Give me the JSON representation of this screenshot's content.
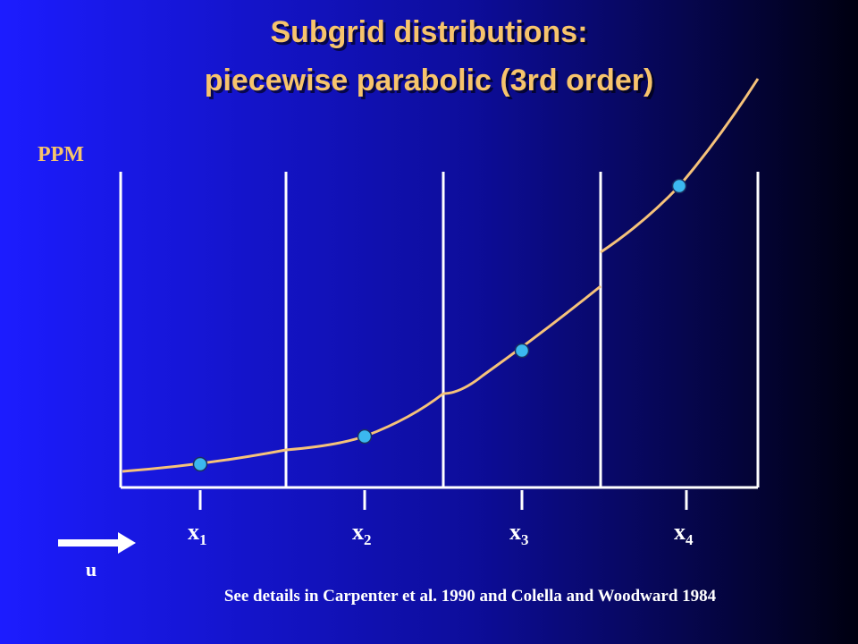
{
  "title": [
    "Subgrid distributions:",
    "piecewise parabolic (3rd order)"
  ],
  "label": "PPM",
  "points": [
    {
      "base": "x",
      "sub": "1"
    },
    {
      "base": "x",
      "sub": "2"
    },
    {
      "base": "x",
      "sub": "3"
    },
    {
      "base": "x",
      "sub": "4"
    }
  ],
  "arrow_label": "u",
  "footnote": "See details in Carpenter et al. 1990 and Colella and Woodward 1984"
}
